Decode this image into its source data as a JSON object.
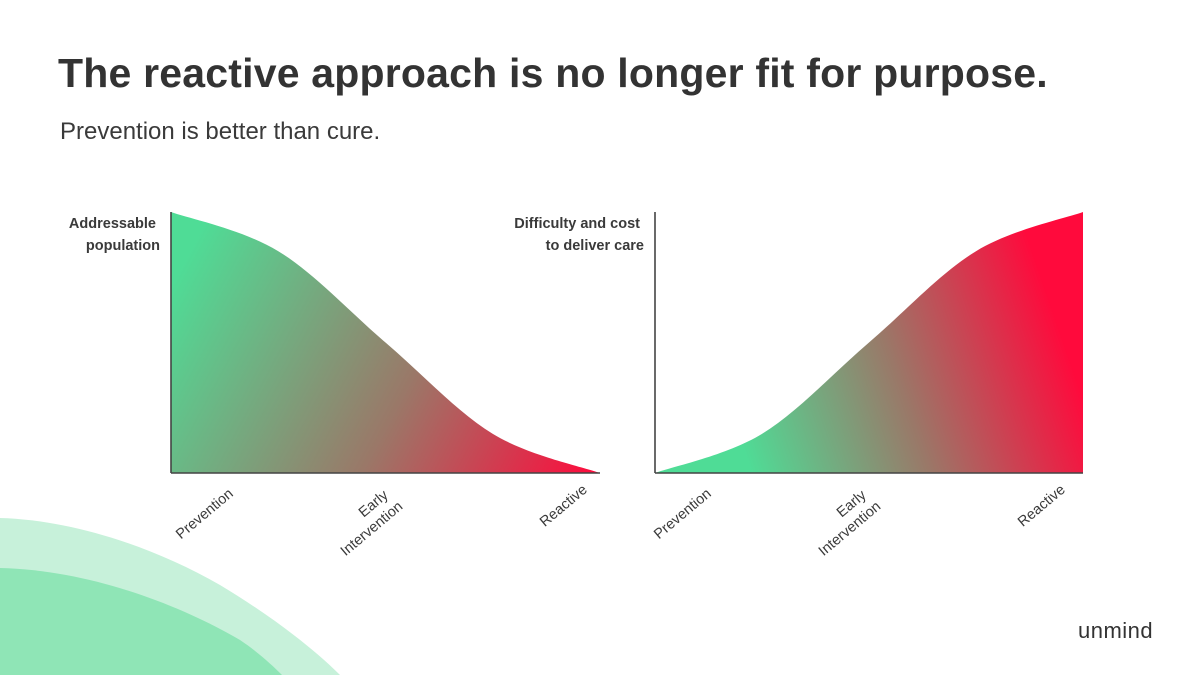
{
  "slide": {
    "title": "The reactive approach is no longer fit for purpose.",
    "subtitle": "Prevention is better than cure.",
    "brand": "unmind"
  },
  "colors": {
    "green": "#4fdc96",
    "red": "#ff0a3c",
    "text": "#333333",
    "axis": "#444444",
    "decor_light": "#c7f1da",
    "decor_mid": "#8fe5b6"
  },
  "chart_data": [
    {
      "type": "area",
      "ylabel_lines": [
        "Addressable",
        "population"
      ],
      "categories": [
        "Prevention",
        "Early Intervention",
        "Reactive"
      ],
      "category_lines": [
        [
          "Prevention"
        ],
        [
          "Early",
          "Intervention"
        ],
        [
          "Reactive"
        ]
      ],
      "x": [
        0,
        0.25,
        0.5,
        0.75,
        1
      ],
      "values": [
        1.0,
        0.85,
        0.5,
        0.15,
        0.0
      ],
      "gradient": "green-to-red along the curve"
    },
    {
      "type": "area",
      "ylabel_lines": [
        "Difficulty and cost",
        "to deliver care"
      ],
      "categories": [
        "Prevention",
        "Early Intervention",
        "Reactive"
      ],
      "category_lines": [
        [
          "Prevention"
        ],
        [
          "Early",
          "Intervention"
        ],
        [
          "Reactive"
        ]
      ],
      "x": [
        0,
        0.25,
        0.5,
        0.75,
        1
      ],
      "values": [
        0.0,
        0.15,
        0.5,
        0.85,
        1.0
      ],
      "gradient": "green-to-red along the curve"
    }
  ]
}
